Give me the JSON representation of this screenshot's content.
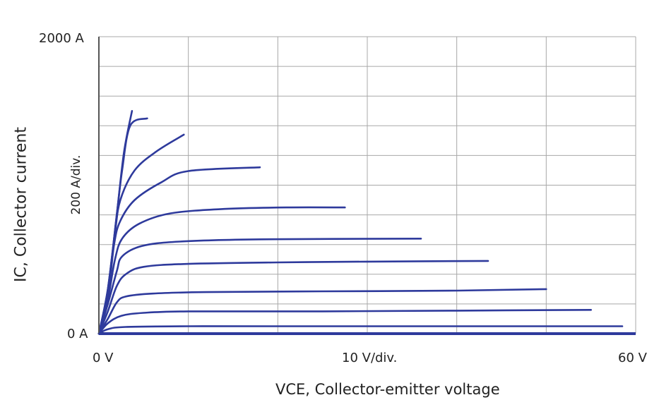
{
  "chart_data": {
    "type": "line",
    "ylabel": "IC, Collector current",
    "xlabel": "VCE, Collector-emitter voltage",
    "y_tick_top": "2000 A",
    "y_tick_bottom": "0 A",
    "y_div_label": "200 A/div.",
    "x_tick_left": "0 V",
    "x_div_label": "10 V/div.",
    "x_tick_right": "60 V",
    "xlim": [
      0,
      60
    ],
    "ylim": [
      0,
      2000
    ],
    "grid": true,
    "x_grid_step": 10,
    "y_grid_step": 200,
    "line_color": "#2e3a9c",
    "series": [
      {
        "values": [
          [
            0,
            0
          ],
          [
            1,
            300
          ],
          [
            2,
            800
          ],
          [
            2.8,
            1220
          ],
          [
            3.7,
            1500
          ]
        ]
      },
      {
        "values": [
          [
            0,
            0
          ],
          [
            1,
            300
          ],
          [
            2,
            800
          ],
          [
            2.6,
            1100
          ],
          [
            3.5,
            1400
          ],
          [
            5.4,
            1450
          ]
        ]
      },
      {
        "values": [
          [
            0,
            0
          ],
          [
            1,
            280
          ],
          [
            1.8,
            680
          ],
          [
            2.4,
            900
          ],
          [
            4,
            1100
          ],
          [
            6.5,
            1230
          ],
          [
            9.5,
            1340
          ]
        ]
      },
      {
        "values": [
          [
            0,
            0
          ],
          [
            1,
            250
          ],
          [
            1.7,
            600
          ],
          [
            2.4,
            760
          ],
          [
            4,
            900
          ],
          [
            7,
            1020
          ],
          [
            10,
            1095
          ],
          [
            18,
            1120
          ]
        ]
      },
      {
        "values": [
          [
            0,
            0
          ],
          [
            1,
            230
          ],
          [
            1.8,
            500
          ],
          [
            2.6,
            640
          ],
          [
            4.5,
            740
          ],
          [
            8,
            810
          ],
          [
            14,
            840
          ],
          [
            21,
            850
          ],
          [
            27.5,
            850
          ]
        ]
      },
      {
        "values": [
          [
            0,
            0
          ],
          [
            1,
            200
          ],
          [
            2,
            420
          ],
          [
            2.6,
            520
          ],
          [
            4.8,
            590
          ],
          [
            9,
            620
          ],
          [
            18,
            635
          ],
          [
            36,
            640
          ]
        ]
      },
      {
        "values": [
          [
            0,
            0
          ],
          [
            1,
            150
          ],
          [
            2,
            320
          ],
          [
            3,
            400
          ],
          [
            5,
            450
          ],
          [
            10,
            470
          ],
          [
            20,
            480
          ],
          [
            30,
            485
          ],
          [
            43.5,
            490
          ]
        ]
      },
      {
        "values": [
          [
            0,
            0
          ],
          [
            1,
            100
          ],
          [
            2,
            210
          ],
          [
            3,
            250
          ],
          [
            6,
            270
          ],
          [
            12,
            280
          ],
          [
            25,
            285
          ],
          [
            40,
            290
          ],
          [
            50,
            300
          ]
        ]
      },
      {
        "values": [
          [
            0,
            0
          ],
          [
            1,
            70
          ],
          [
            2.5,
            120
          ],
          [
            5,
            140
          ],
          [
            10,
            150
          ],
          [
            25,
            150
          ],
          [
            40,
            155
          ],
          [
            55,
            160
          ]
        ]
      },
      {
        "values": [
          [
            0,
            0
          ],
          [
            1,
            30
          ],
          [
            3,
            45
          ],
          [
            10,
            50
          ],
          [
            20,
            50
          ],
          [
            40,
            50
          ],
          [
            58.5,
            50
          ]
        ]
      }
    ]
  }
}
